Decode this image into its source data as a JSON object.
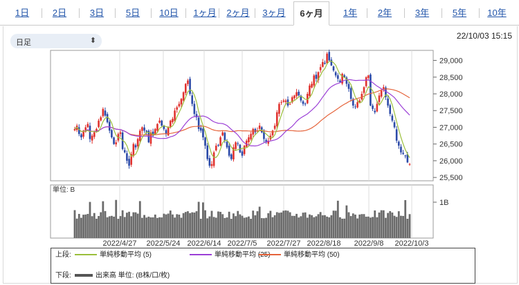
{
  "tabs": [
    {
      "label": "1日",
      "active": false
    },
    {
      "label": "2日",
      "active": false
    },
    {
      "label": "3日",
      "active": false
    },
    {
      "label": "5日",
      "active": false
    },
    {
      "label": "10日",
      "active": false
    },
    {
      "label": "1ヶ月",
      "active": false
    },
    {
      "label": "2ヶ月",
      "active": false
    },
    {
      "label": "3ヶ月",
      "active": false
    },
    {
      "label": "6ヶ月",
      "active": true
    },
    {
      "label": "1年",
      "active": false
    },
    {
      "label": "2年",
      "active": false
    },
    {
      "label": "3年",
      "active": false
    },
    {
      "label": "5年",
      "active": false
    },
    {
      "label": "10年",
      "active": false
    }
  ],
  "period_select": {
    "value": "日足"
  },
  "timestamp": "22/10/03 15:15",
  "chart_data": {
    "type": "candlestick",
    "price_axis": {
      "ticks": [
        "29,000",
        "28,500",
        "28,000",
        "27,500",
        "27,000",
        "26,500",
        "26,000",
        "25,500"
      ],
      "range": [
        25500,
        29000
      ]
    },
    "volume_axis": {
      "label": "単位: B",
      "ticks": [
        "1B"
      ]
    },
    "x_tick_labels": [
      "2022/4/27",
      "2022/5/24",
      "2022/6/14",
      "2022/7/5",
      "2022/7/27",
      "2022/8/18",
      "2022/9/8",
      "2022/10/3"
    ],
    "colors": {
      "up": "#e0322e",
      "down": "#2a49a8",
      "ma5": "#9abf3a",
      "ma25": "#9b3fd6",
      "ma50": "#e5633a",
      "volume": "#6b6b6b"
    },
    "closes": [
      26950,
      27050,
      26800,
      26700,
      26900,
      27000,
      27100,
      26650,
      26750,
      26850,
      26950,
      27200,
      27300,
      27550,
      27350,
      27150,
      26900,
      26700,
      26500,
      26550,
      26800,
      26850,
      26350,
      26250,
      26000,
      25850,
      26200,
      26500,
      26400,
      26650,
      26900,
      27000,
      26900,
      26850,
      26550,
      26850,
      26750,
      26950,
      27100,
      27200,
      27050,
      26950,
      26800,
      27000,
      27200,
      27250,
      27500,
      27600,
      27700,
      27850,
      28050,
      28300,
      28400,
      28000,
      27700,
      27400,
      27300,
      26950,
      26900,
      26700,
      26450,
      26050,
      25850,
      25900,
      26250,
      26450,
      26450,
      26700,
      26850,
      26600,
      26400,
      26150,
      26050,
      26400,
      26550,
      26500,
      26250,
      26150,
      26450,
      26600,
      26700,
      26800,
      26950,
      26850,
      26900,
      27050,
      26850,
      26650,
      26550,
      26600,
      26750,
      26900,
      27050,
      27450,
      27700,
      27750,
      27800,
      27800,
      27650,
      27700,
      27900,
      27950,
      28050,
      27950,
      27800,
      27700,
      27700,
      28000,
      28250,
      28300,
      28550,
      28450,
      28650,
      28800,
      28950,
      28900,
      29200,
      29000,
      28850,
      28700,
      28550,
      28450,
      28350,
      28600,
      28500,
      28300,
      28150,
      27850,
      27650,
      27600,
      27750,
      27800,
      28000,
      28200,
      28500,
      28550,
      27650,
      27550,
      27450,
      27700,
      27950,
      28100,
      28200,
      27900,
      27650,
      27400,
      27200,
      27000,
      26600,
      26450,
      26250,
      26200,
      26150,
      25950,
      25900
    ]
  },
  "legend": {
    "upper": {
      "label": "上段:",
      "items": [
        {
          "label": "単純移動平均 (5)",
          "color": "#9abf3a"
        },
        {
          "label": "単純移動平均 (25)",
          "color": "#9b3fd6"
        },
        {
          "label": "単純移動平均 (50)",
          "color": "#e5633a"
        }
      ]
    },
    "lower": {
      "label": "下段:",
      "item": "出来高 単位: (B株/口/枚)"
    }
  }
}
